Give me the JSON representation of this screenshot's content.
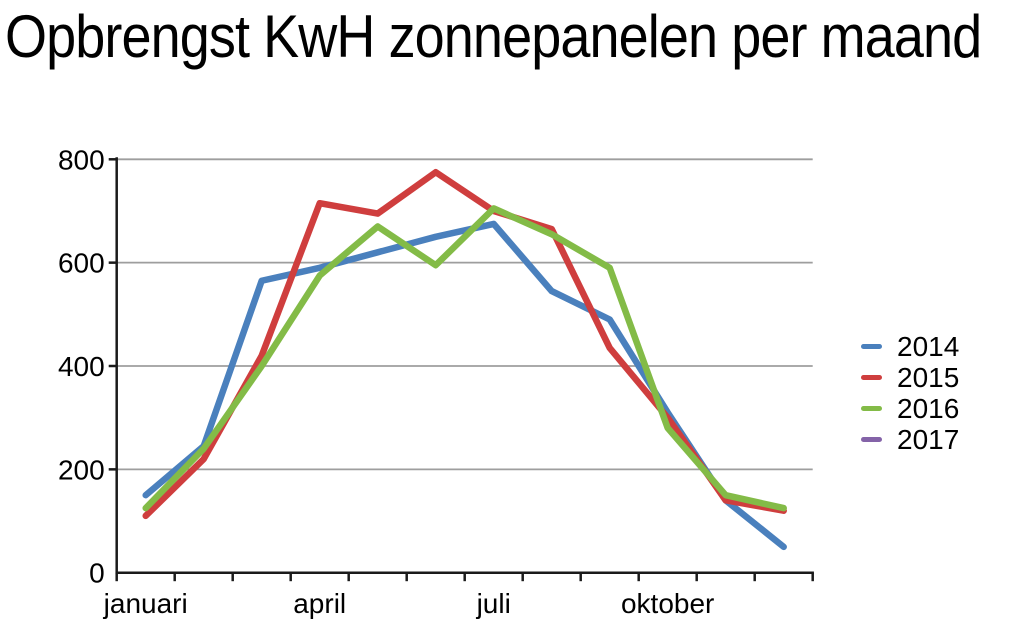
{
  "chart_data": {
    "type": "line",
    "title": "Opbrengst KwH zonnepanelen per maand",
    "y_ticks": [
      0,
      200,
      400,
      600,
      800
    ],
    "ylim": [
      0,
      800
    ],
    "months_per_series": 12,
    "x_tick_labels": [
      {
        "label": "januari",
        "month_index": 0
      },
      {
        "label": "april",
        "month_index": 3
      },
      {
        "label": "juli",
        "month_index": 6
      },
      {
        "label": "oktober",
        "month_index": 9
      }
    ],
    "grid": "horizontal",
    "legend_position": "right",
    "series": [
      {
        "name": "2014",
        "color": "#4A80BD",
        "values": [
          150,
          245,
          565,
          590,
          620,
          650,
          675,
          545,
          490,
          310,
          140,
          50
        ]
      },
      {
        "name": "2015",
        "color": "#CF3E3E",
        "values": [
          110,
          220,
          420,
          715,
          695,
          775,
          700,
          665,
          435,
          300,
          140,
          120
        ]
      },
      {
        "name": "2016",
        "color": "#83BB47",
        "values": [
          125,
          240,
          400,
          575,
          670,
          595,
          705,
          655,
          590,
          280,
          150,
          125
        ]
      },
      {
        "name": "2017",
        "color": "#8463A8",
        "values": []
      }
    ]
  },
  "colors": {
    "gridline": "#9E9E9E",
    "axis": "#1A1A1A",
    "text": "#000000",
    "background": "#FFFFFF"
  }
}
